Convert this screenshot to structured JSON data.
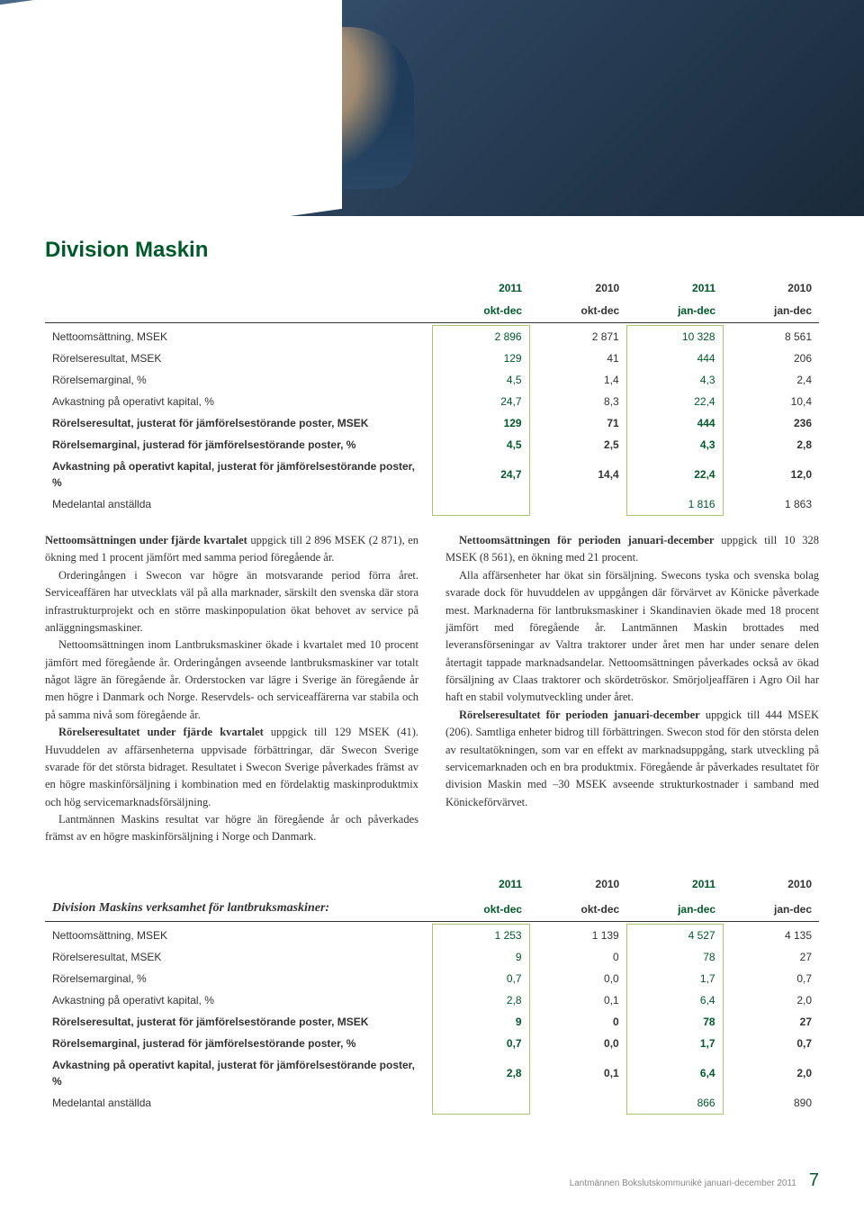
{
  "hero": {
    "alt": "Man driving tractor cab"
  },
  "section1": {
    "title": "Division Maskin",
    "columns": [
      {
        "l1": "2011",
        "l2": "okt-dec",
        "hl": true
      },
      {
        "l1": "2010",
        "l2": "okt-dec",
        "hl": false
      },
      {
        "l1": "2011",
        "l2": "jan-dec",
        "hl": true
      },
      {
        "l1": "2010",
        "l2": "jan-dec",
        "hl": false
      }
    ],
    "rows": [
      {
        "label": "Nettoomsättning, MSEK",
        "vals": [
          "2 896",
          "2 871",
          "10 328",
          "8 561"
        ],
        "bold": false
      },
      {
        "label": "Rörelseresultat, MSEK",
        "vals": [
          "129",
          "41",
          "444",
          "206"
        ],
        "bold": false
      },
      {
        "label": "Rörelsemarginal, %",
        "vals": [
          "4,5",
          "1,4",
          "4,3",
          "2,4"
        ],
        "bold": false
      },
      {
        "label": "Avkastning på operativt kapital, %",
        "vals": [
          "24,7",
          "8,3",
          "22,4",
          "10,4"
        ],
        "bold": false
      },
      {
        "label": "Rörelseresultat, justerat för jämförelsestörande poster, MSEK",
        "vals": [
          "129",
          "71",
          "444",
          "236"
        ],
        "bold": true
      },
      {
        "label": "Rörelsemarginal, justerad för jämförelsestörande poster, %",
        "vals": [
          "4,5",
          "2,5",
          "4,3",
          "2,8"
        ],
        "bold": true
      },
      {
        "label": "Avkastning på operativt kapital, justerat för jämförelsestörande poster, %",
        "vals": [
          "24,7",
          "14,4",
          "22,4",
          "12,0"
        ],
        "bold": true
      },
      {
        "label": "Medelantal anställda",
        "vals": [
          "",
          "",
          "1 816",
          "1 863"
        ],
        "bold": false
      }
    ]
  },
  "bodytext": {
    "left": {
      "p1a": "Nettoomsättningen under fjärde kvartalet",
      "p1b": " uppgick till 2 896 MSEK (2 871), en ökning med 1 procent jämfört med samma period föregående år.",
      "p2": "Orderingången i Swecon var högre än motsvarande period förra året. Serviceaffären har utvecklats väl på alla marknader, särskilt den svenska där stora infrastrukturprojekt och en större maskinpopulation ökat behovet av service på anläggningsmaskiner.",
      "p3": "Nettoomsättningen inom Lantbruksmaskiner ökade i kvartalet med 10 procent jämfört med föregående år. Orderingången avseende lantbruksmaskiner var totalt något lägre än föregående år. Orderstocken var lägre i Sverige än föregående år men högre i Danmark och Norge. Reservdels- och serviceaffärerna var stabila och på samma nivå som föregående år.",
      "p4a": "Rörelseresultatet under fjärde kvartalet",
      "p4b": " uppgick till 129 MSEK (41). Huvuddelen av affärsenheterna uppvisade förbättringar, där Swecon Sverige svarade för det största bidraget. Resultatet i Swecon Sverige påverkades främst av en högre maskinförsäljning i kombination med en fördelaktig maskinproduktmix och hög servicemarknadsförsäljning.",
      "p5": "Lantmännen Maskins resultat var högre än föregående år och påverkades främst av en högre maskinförsäljning i Norge och Danmark."
    },
    "right": {
      "p1a": "Nettoomsättningen för perioden januari-december",
      "p1b": " uppgick till 10 328 MSEK (8 561), en ökning med 21 procent.",
      "p2": "Alla affärsenheter har ökat sin försäljning. Swecons tyska och svenska bolag svarade dock för huvuddelen av uppgången där förvärvet av Könicke påverkade mest. Marknaderna för lantbruksmaskiner i Skandinavien ökade med 18 procent jämfört med föregående år. Lantmännen Maskin brottades med leveransförseningar av Valtra traktorer under året men har under senare delen återtagit tappade marknadsandelar. Nettoomsättningen påverkades också av ökad försäljning av Claas traktorer och skördetröskor. Smörjoljeaffären i Agro Oil har haft en stabil volymutveckling under året.",
      "p3a": "Rörelseresultatet för perioden januari-december",
      "p3b": " uppgick till 444 MSEK (206). Samtliga enheter bidrog till förbättringen. Swecon stod för den största delen av resultatökningen, som var en effekt av marknadsuppgång, stark utveckling på servicemarknaden och en bra produktmix. Föregående år påverkades resultatet för division Maskin med –30 MSEK avseende strukturkostnader i samband med Könickeförvärvet."
    }
  },
  "section2": {
    "title": "Division Maskins verksamhet för lantbruksmaskiner:",
    "columns": [
      {
        "l1": "2011",
        "l2": "okt-dec",
        "hl": true
      },
      {
        "l1": "2010",
        "l2": "okt-dec",
        "hl": false
      },
      {
        "l1": "2011",
        "l2": "jan-dec",
        "hl": true
      },
      {
        "l1": "2010",
        "l2": "jan-dec",
        "hl": false
      }
    ],
    "rows": [
      {
        "label": "Nettoomsättning, MSEK",
        "vals": [
          "1 253",
          "1 139",
          "4 527",
          "4 135"
        ],
        "bold": false
      },
      {
        "label": "Rörelseresultat, MSEK",
        "vals": [
          "9",
          "0",
          "78",
          "27"
        ],
        "bold": false
      },
      {
        "label": "Rörelsemarginal, %",
        "vals": [
          "0,7",
          "0,0",
          "1,7",
          "0,7"
        ],
        "bold": false
      },
      {
        "label": "Avkastning på operativt kapital, %",
        "vals": [
          "2,8",
          "0,1",
          "6,4",
          "2,0"
        ],
        "bold": false
      },
      {
        "label": "Rörelseresultat, justerat för jämförelsestörande poster, MSEK",
        "vals": [
          "9",
          "0",
          "78",
          "27"
        ],
        "bold": true
      },
      {
        "label": "Rörelsemarginal, justerad för jämförelsestörande poster, %",
        "vals": [
          "0,7",
          "0,0",
          "1,7",
          "0,7"
        ],
        "bold": true
      },
      {
        "label": "Avkastning på operativt kapital, justerat för jämförelsestörande poster, %",
        "vals": [
          "2,8",
          "0,1",
          "6,4",
          "2,0"
        ],
        "bold": true
      },
      {
        "label": "Medelantal anställda",
        "vals": [
          "",
          "",
          "866",
          "890"
        ],
        "bold": false
      }
    ]
  },
  "footer": {
    "text": "Lantmännen Bokslutskommuniké januari-december 2011",
    "page": "7"
  },
  "colors": {
    "accent": "#005a2a",
    "hlborder": "#a8c96b",
    "text": "#333333",
    "muted": "#888888"
  }
}
